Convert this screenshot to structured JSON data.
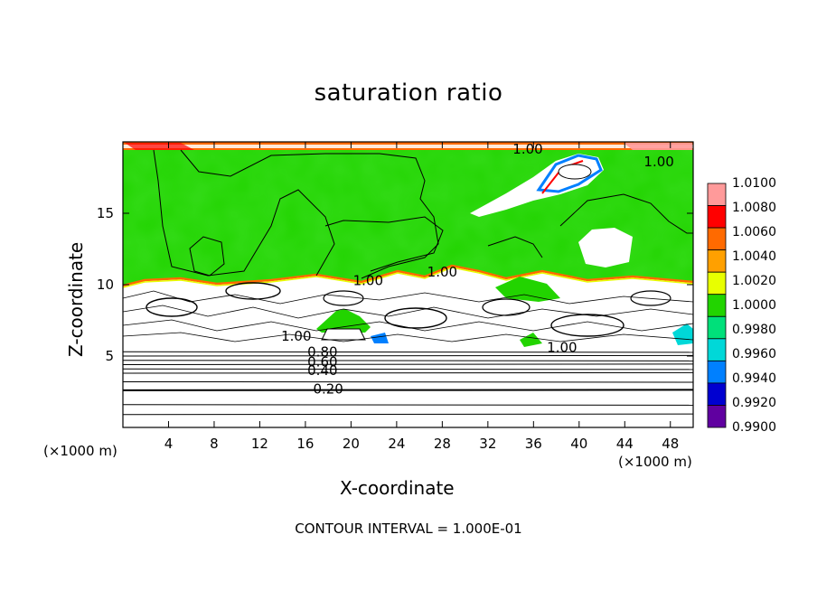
{
  "chart_data": {
    "type": "heatmap",
    "title": "saturation ratio",
    "xlabel": "X-coordinate",
    "ylabel": "Z-coordinate",
    "x_unit_left": "(×1000 m)",
    "x_unit_right": "(×1000 m)",
    "footnote": "CONTOUR INTERVAL = 1.000E-01",
    "xlim": [
      0,
      50
    ],
    "ylim": [
      0,
      20
    ],
    "x_ticks": [
      4,
      8,
      12,
      16,
      20,
      24,
      28,
      32,
      36,
      40,
      44,
      48
    ],
    "x_tick_labels": [
      "4",
      "8",
      "12",
      "16",
      "20",
      "24",
      "28",
      "32",
      "36",
      "40",
      "44",
      "48"
    ],
    "y_ticks": [
      5,
      10,
      15
    ],
    "y_tick_labels": [
      "5",
      "10",
      "15"
    ],
    "colorbar": {
      "levels": [
        1.01,
        1.008,
        1.006,
        1.004,
        1.002,
        1.0,
        0.998,
        0.996,
        0.994,
        0.992,
        0.99
      ],
      "labels": [
        "1.0100",
        "1.0080",
        "1.0060",
        "1.0040",
        "1.0020",
        "1.0000",
        "0.9980",
        "0.9960",
        "0.9940",
        "0.9920",
        "0.9900"
      ],
      "colors": [
        "#ff9a9a",
        "#ff0000",
        "#ff6a00",
        "#ffa000",
        "#e8ff00",
        "#22d400",
        "#00e07a",
        "#00d8d8",
        "#0080ff",
        "#0000d0",
        "#6000a0"
      ]
    },
    "contour_labels": [
      {
        "text": "0.20",
        "x": 18,
        "z": 2.7
      },
      {
        "text": "0.40",
        "x": 17.5,
        "z": 4.0
      },
      {
        "text": "0.60",
        "x": 17.5,
        "z": 4.6
      },
      {
        "text": "0.80",
        "x": 17.5,
        "z": 5.3
      },
      {
        "text": "1.00",
        "x": 21.5,
        "z": 10.3
      },
      {
        "text": "1.00",
        "x": 28.0,
        "z": 10.9
      },
      {
        "text": "1.00",
        "x": 38.5,
        "z": 5.6
      },
      {
        "text": "1.00",
        "x": 35.5,
        "z": 19.5
      },
      {
        "text": "1.00",
        "x": 15.2,
        "z": 6.4
      },
      {
        "text": "1.00",
        "x": 47.0,
        "z": 18.6
      }
    ],
    "horizontal_contours_z": [
      0.9,
      1.6,
      2.6,
      3.2,
      3.8,
      4.1,
      4.4,
      4.7,
      5.0,
      5.3
    ]
  }
}
